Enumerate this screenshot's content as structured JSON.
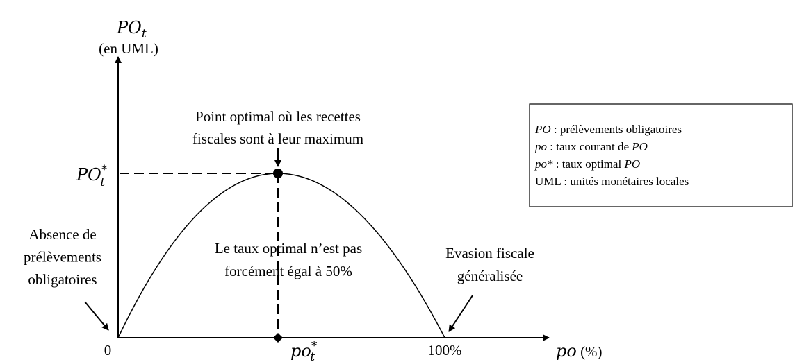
{
  "y_axis": {
    "label": {
      "base": "PO",
      "sub": "t"
    },
    "unit": "(en UML)",
    "max_label": {
      "base": "PO",
      "sub": "t",
      "sup": "*"
    }
  },
  "x_axis": {
    "origin": "0",
    "optimum_label": {
      "base": "po",
      "sub": "t",
      "sup": "*"
    },
    "end_label": "100%",
    "label": {
      "base": "po",
      "unit": " (%)"
    }
  },
  "annotations": {
    "optimum": [
      "Point optimal où les recettes",
      "fiscales sont à leur maximum"
    ],
    "absence": [
      "Absence de",
      "prélèvements",
      "obligatoires"
    ],
    "note": [
      "Le taux optimal n’est pas",
      "forcément égal à 50%"
    ],
    "evasion": [
      "Evasion fiscale",
      "généralisée"
    ]
  },
  "legend": [
    [
      {
        "text": "PO",
        "italic": true
      },
      {
        "text": " : prélèvements obligatoires",
        "italic": false
      }
    ],
    [
      {
        "text": "po",
        "italic": true
      },
      {
        "text": " : taux courant de ",
        "italic": false
      },
      {
        "text": "PO",
        "italic": true
      }
    ],
    [
      {
        "text": "po*",
        "italic": true
      },
      {
        "text": " : taux optimal ",
        "italic": false
      },
      {
        "text": "PO",
        "italic": true
      }
    ],
    [
      {
        "text": "UML : unités monétaires locales",
        "italic": false
      }
    ]
  ]
}
